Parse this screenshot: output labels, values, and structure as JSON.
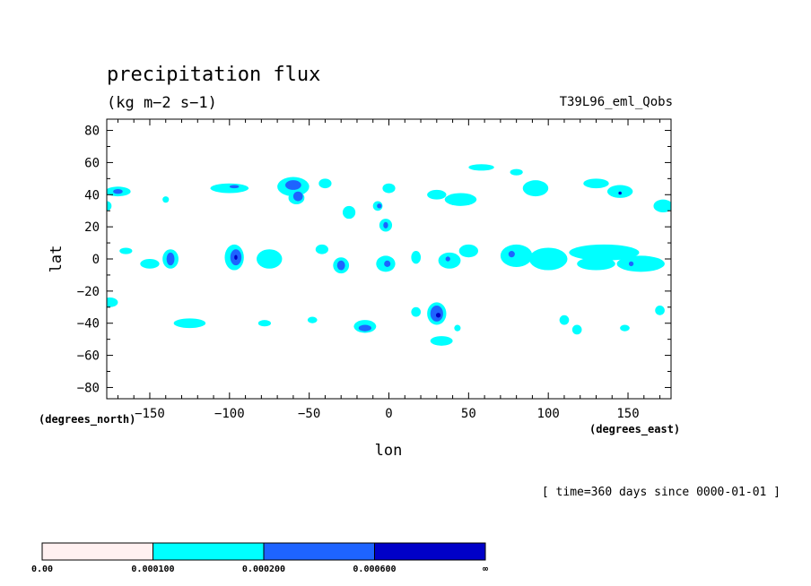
{
  "chart_data": {
    "type": "contour",
    "title": "precipitation flux",
    "units": "(kg m−2 s−1)",
    "run_label": "T39L96_eml_Qobs",
    "xlabel": "lon",
    "ylabel": "lat",
    "x_units": "(degrees_east)",
    "y_units": "(degrees_north)",
    "time_label": "[ time=360 days since 0000-01-01 ]",
    "xlim": [
      -177,
      177
    ],
    "ylim": [
      -87,
      87
    ],
    "x_ticks": [
      -150,
      -100,
      -50,
      0,
      50,
      100,
      150
    ],
    "x_tick_labels": [
      "−150",
      "−100",
      "−50",
      "0",
      "50",
      "100",
      "150"
    ],
    "y_ticks": [
      80,
      60,
      40,
      20,
      0,
      -20,
      -40,
      -60,
      -80
    ],
    "y_tick_labels": [
      "80",
      "60",
      "40",
      "20",
      "0",
      "−20",
      "−40",
      "−60",
      "−80"
    ],
    "levels": [
      {
        "label": "0.00",
        "color": "#fff0f0"
      },
      {
        "label": "0.000100",
        "color": "#00ffff"
      },
      {
        "label": "0.000200",
        "color": "#1e64ff"
      },
      {
        "label": "0.000600",
        "color": "#0000c8"
      },
      {
        "label": "∞",
        "color": null
      }
    ],
    "regions": [
      {
        "level": 1,
        "lon": -170,
        "lat": 42,
        "rlon": 8,
        "rlat": 3
      },
      {
        "level": 1,
        "lon": -177,
        "lat": 33,
        "rlon": 3,
        "rlat": 3
      },
      {
        "level": 1,
        "lon": -140,
        "lat": 37,
        "rlon": 2,
        "rlat": 2
      },
      {
        "level": 1,
        "lon": -100,
        "lat": 44,
        "rlon": 12,
        "rlat": 3
      },
      {
        "level": 1,
        "lon": -60,
        "lat": 45,
        "rlon": 10,
        "rlat": 6
      },
      {
        "level": 1,
        "lon": -58,
        "lat": 38,
        "rlon": 5,
        "rlat": 4
      },
      {
        "level": 1,
        "lon": -40,
        "lat": 47,
        "rlon": 4,
        "rlat": 3
      },
      {
        "level": 1,
        "lon": -25,
        "lat": 29,
        "rlon": 4,
        "rlat": 4
      },
      {
        "level": 1,
        "lon": -7,
        "lat": 33,
        "rlon": 3,
        "rlat": 3
      },
      {
        "level": 1,
        "lon": 0,
        "lat": 44,
        "rlon": 4,
        "rlat": 3
      },
      {
        "level": 1,
        "lon": -2,
        "lat": 21,
        "rlon": 4,
        "rlat": 4
      },
      {
        "level": 1,
        "lon": 30,
        "lat": 40,
        "rlon": 6,
        "rlat": 3
      },
      {
        "level": 1,
        "lon": 45,
        "lat": 37,
        "rlon": 10,
        "rlat": 4
      },
      {
        "level": 1,
        "lon": 58,
        "lat": 57,
        "rlon": 8,
        "rlat": 2
      },
      {
        "level": 1,
        "lon": 80,
        "lat": 54,
        "rlon": 4,
        "rlat": 2
      },
      {
        "level": 1,
        "lon": 92,
        "lat": 44,
        "rlon": 8,
        "rlat": 5
      },
      {
        "level": 1,
        "lon": 130,
        "lat": 47,
        "rlon": 8,
        "rlat": 3
      },
      {
        "level": 1,
        "lon": 145,
        "lat": 42,
        "rlon": 8,
        "rlat": 4
      },
      {
        "level": 1,
        "lon": 172,
        "lat": 33,
        "rlon": 6,
        "rlat": 4
      },
      {
        "level": 1,
        "lon": -165,
        "lat": 5,
        "rlon": 4,
        "rlat": 2
      },
      {
        "level": 1,
        "lon": -137,
        "lat": 0,
        "rlon": 5,
        "rlat": 6
      },
      {
        "level": 1,
        "lon": -150,
        "lat": -3,
        "rlon": 6,
        "rlat": 3
      },
      {
        "level": 1,
        "lon": -97,
        "lat": 1,
        "rlon": 6,
        "rlat": 8
      },
      {
        "level": 1,
        "lon": -75,
        "lat": 0,
        "rlon": 8,
        "rlat": 6
      },
      {
        "level": 1,
        "lon": -42,
        "lat": 6,
        "rlon": 4,
        "rlat": 3
      },
      {
        "level": 1,
        "lon": -30,
        "lat": -4,
        "rlon": 5,
        "rlat": 5
      },
      {
        "level": 1,
        "lon": -2,
        "lat": -3,
        "rlon": 6,
        "rlat": 5
      },
      {
        "level": 1,
        "lon": 17,
        "lat": 1,
        "rlon": 3,
        "rlat": 4
      },
      {
        "level": 1,
        "lon": 38,
        "lat": -1,
        "rlon": 7,
        "rlat": 5
      },
      {
        "level": 1,
        "lon": 50,
        "lat": 5,
        "rlon": 6,
        "rlat": 4
      },
      {
        "level": 1,
        "lon": 80,
        "lat": 2,
        "rlon": 10,
        "rlat": 7
      },
      {
        "level": 1,
        "lon": 100,
        "lat": 0,
        "rlon": 12,
        "rlat": 7
      },
      {
        "level": 1,
        "lon": 135,
        "lat": 4,
        "rlon": 22,
        "rlat": 5
      },
      {
        "level": 1,
        "lon": 130,
        "lat": -3,
        "rlon": 12,
        "rlat": 4
      },
      {
        "level": 1,
        "lon": 158,
        "lat": -3,
        "rlon": 15,
        "rlat": 5
      },
      {
        "level": 1,
        "lon": -175,
        "lat": -27,
        "rlon": 5,
        "rlat": 3
      },
      {
        "level": 1,
        "lon": -125,
        "lat": -40,
        "rlon": 10,
        "rlat": 3
      },
      {
        "level": 1,
        "lon": -78,
        "lat": -40,
        "rlon": 4,
        "rlat": 2
      },
      {
        "level": 1,
        "lon": -48,
        "lat": -38,
        "rlon": 3,
        "rlat": 2
      },
      {
        "level": 1,
        "lon": -15,
        "lat": -42,
        "rlon": 7,
        "rlat": 4
      },
      {
        "level": 1,
        "lon": 17,
        "lat": -33,
        "rlon": 3,
        "rlat": 3
      },
      {
        "level": 1,
        "lon": 30,
        "lat": -34,
        "rlon": 6,
        "rlat": 7
      },
      {
        "level": 1,
        "lon": 33,
        "lat": -51,
        "rlon": 7,
        "rlat": 3
      },
      {
        "level": 1,
        "lon": 43,
        "lat": -43,
        "rlon": 2,
        "rlat": 2
      },
      {
        "level": 1,
        "lon": 110,
        "lat": -38,
        "rlon": 3,
        "rlat": 3
      },
      {
        "level": 1,
        "lon": 118,
        "lat": -44,
        "rlon": 3,
        "rlat": 3
      },
      {
        "level": 1,
        "lon": 148,
        "lat": -43,
        "rlon": 3,
        "rlat": 2
      },
      {
        "level": 1,
        "lon": 170,
        "lat": -32,
        "rlon": 3,
        "rlat": 3
      },
      {
        "level": 2,
        "lon": -60,
        "lat": 46,
        "rlon": 5,
        "rlat": 3
      },
      {
        "level": 2,
        "lon": -57,
        "lat": 39,
        "rlon": 3,
        "rlat": 3
      },
      {
        "level": 2,
        "lon": -170,
        "lat": 42,
        "rlon": 3,
        "rlat": 1.5
      },
      {
        "level": 2,
        "lon": -97,
        "lat": 45,
        "rlon": 3,
        "rlat": 1
      },
      {
        "level": 2,
        "lon": -6,
        "lat": 33,
        "rlon": 1.5,
        "rlat": 1.5
      },
      {
        "level": 2,
        "lon": -2,
        "lat": 21,
        "rlon": 1.5,
        "rlat": 2
      },
      {
        "level": 2,
        "lon": -137,
        "lat": 0,
        "rlon": 2.5,
        "rlat": 4
      },
      {
        "level": 2,
        "lon": -96,
        "lat": 1,
        "rlon": 3.5,
        "rlat": 5
      },
      {
        "level": 2,
        "lon": -30,
        "lat": -4,
        "rlon": 2.5,
        "rlat": 3
      },
      {
        "level": 2,
        "lon": -1,
        "lat": -3,
        "rlon": 2,
        "rlat": 2
      },
      {
        "level": 2,
        "lon": 37,
        "lat": 0,
        "rlon": 1.5,
        "rlat": 1.5
      },
      {
        "level": 2,
        "lon": 77,
        "lat": 3,
        "rlon": 2,
        "rlat": 2
      },
      {
        "level": 2,
        "lon": 152,
        "lat": -3,
        "rlon": 1.5,
        "rlat": 1.5
      },
      {
        "level": 2,
        "lon": -15,
        "lat": -43,
        "rlon": 4,
        "rlat": 2
      },
      {
        "level": 2,
        "lon": 30,
        "lat": -34,
        "rlon": 4,
        "rlat": 5
      },
      {
        "level": 3,
        "lon": 31,
        "lat": -35,
        "rlon": 1.5,
        "rlat": 1.5
      },
      {
        "level": 3,
        "lon": -96,
        "lat": 1,
        "rlon": 1,
        "rlat": 1.5
      },
      {
        "level": 3,
        "lon": 145,
        "lat": 41,
        "rlon": 1,
        "rlat": 1
      }
    ]
  }
}
